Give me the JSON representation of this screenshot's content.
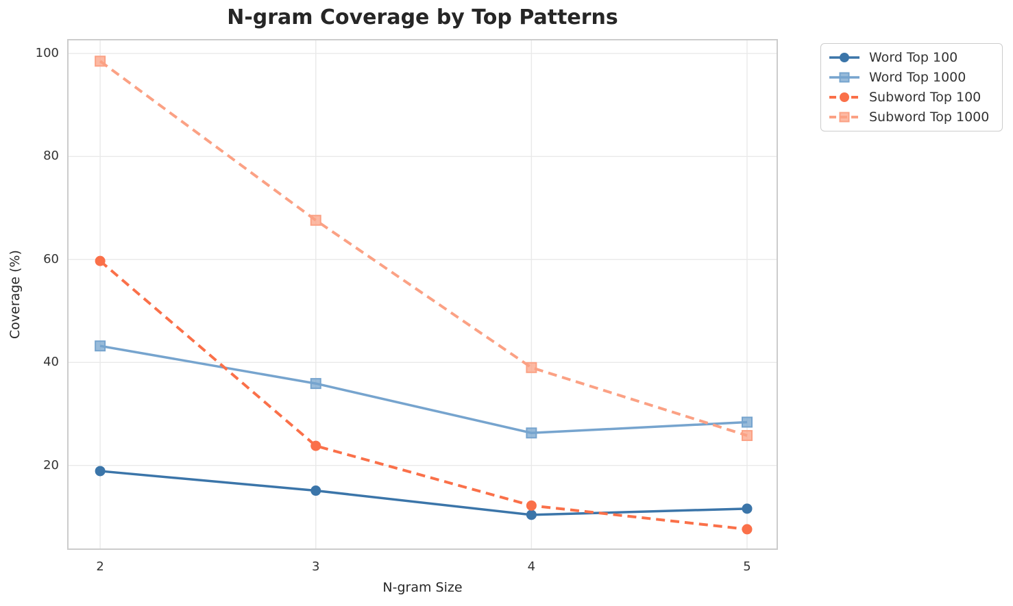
{
  "title": "N-gram Coverage by Top Patterns",
  "chart_data": {
    "type": "line",
    "title": "N-gram Coverage by Top Patterns",
    "xlabel": "N-gram Size",
    "ylabel": "Coverage (%)",
    "x": [
      2,
      3,
      4,
      5
    ],
    "series": [
      {
        "name": "Word Top 100",
        "color": "#3B75A9",
        "dash": false,
        "marker": "circle",
        "values": [
          18.9,
          15.1,
          10.4,
          11.6
        ]
      },
      {
        "name": "Word Top 1000",
        "color": "#76A4CE",
        "dash": false,
        "marker": "square",
        "values": [
          43.2,
          35.9,
          26.3,
          28.4
        ]
      },
      {
        "name": "Subword Top 100",
        "color": "#FA7049",
        "dash": true,
        "marker": "circle",
        "values": [
          59.7,
          23.8,
          12.2,
          7.6
        ]
      },
      {
        "name": "Subword Top 1000",
        "color": "#FBA184",
        "dash": true,
        "marker": "square",
        "values": [
          98.5,
          67.6,
          39.0,
          25.8
        ]
      }
    ],
    "x_ticks": [
      2,
      3,
      4,
      5
    ],
    "y_ticks": [
      20,
      40,
      60,
      80,
      100
    ],
    "xlim": [
      1.847,
      5.143
    ],
    "ylim": [
      3.6,
      102.8
    ],
    "grid": true,
    "grid_color": "#e9e9e9",
    "spine_color": "#cccccc",
    "legend_position": "outside-top-right"
  }
}
